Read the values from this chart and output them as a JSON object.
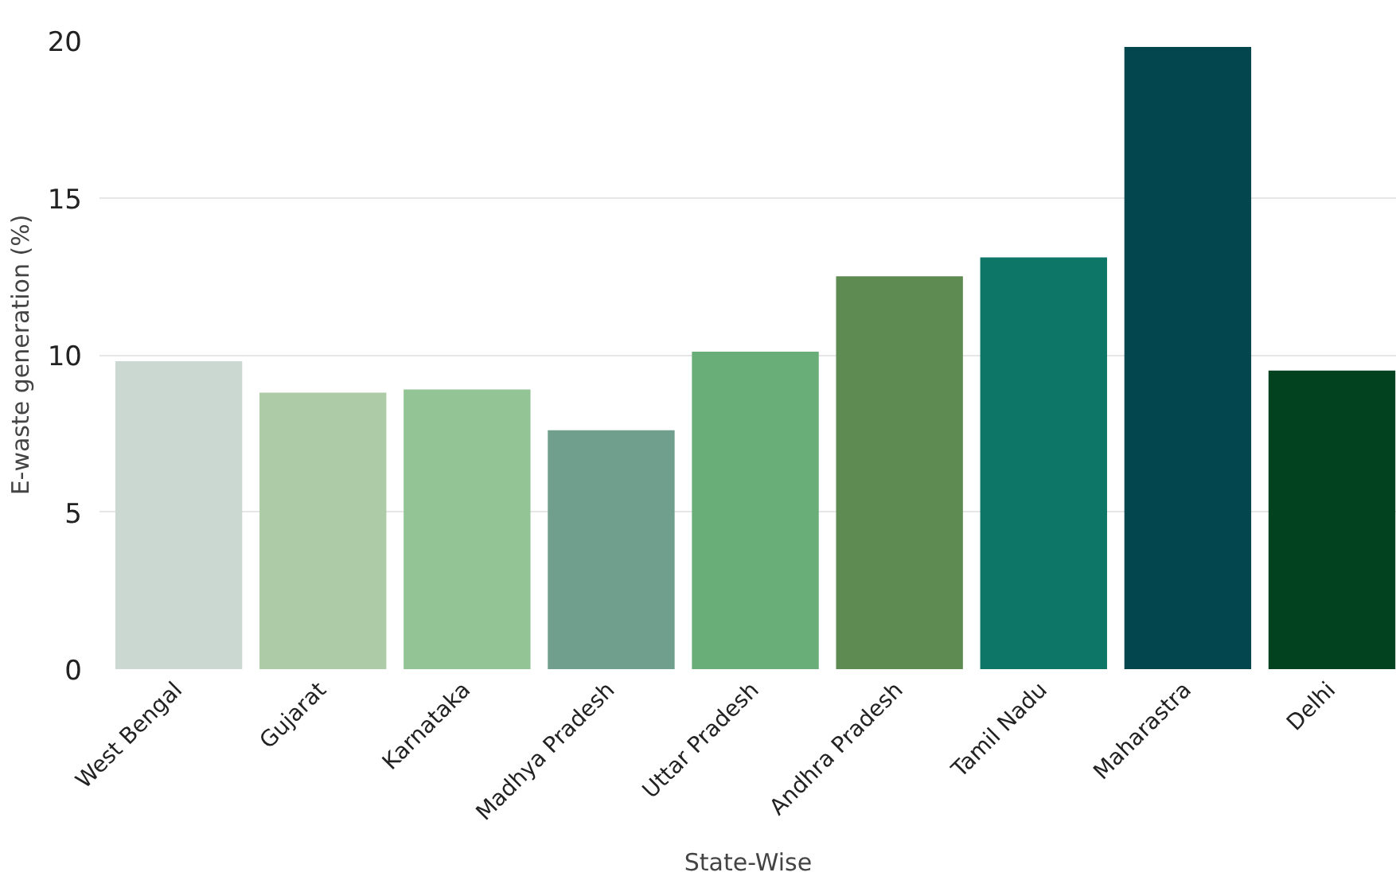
{
  "chart_data": {
    "type": "bar",
    "xlabel": "State-Wise",
    "ylabel": "E-waste generation (%)",
    "categories": [
      "West Bengal",
      "Gujarat",
      "Karnataka",
      "Madhya Pradesh",
      "Uttar Pradesh",
      "Andhra Pradesh",
      "Tamil Nadu",
      "Maharastra",
      "Delhi"
    ],
    "values": [
      9.8,
      8.8,
      8.9,
      7.6,
      10.1,
      12.5,
      13.1,
      19.8,
      9.5
    ],
    "colors": [
      "#cad8d1",
      "#adcba6",
      "#92c495",
      "#709f8d",
      "#69ae79",
      "#5e8b51",
      "#0e7667",
      "#03464d",
      "#03421f"
    ],
    "ylim": [
      0,
      20
    ],
    "yticks": [
      0,
      5,
      10,
      15,
      20
    ],
    "grid": "y"
  }
}
